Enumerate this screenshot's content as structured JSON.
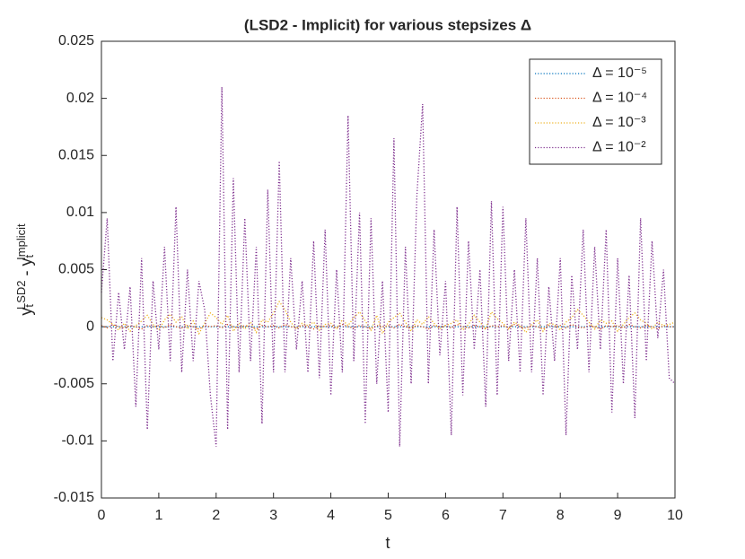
{
  "chart_data": {
    "type": "line",
    "title": "(LSD2 - Implicit) for various stepsizes Δ",
    "xlabel": "t",
    "ylabel": [
      {
        "text": "y"
      },
      {
        "text": "t",
        "role": "sub"
      },
      {
        "text": "LSD2",
        "role": "sup"
      },
      {
        "text": " - y"
      },
      {
        "text": "t",
        "role": "sub"
      },
      {
        "text": "Implicit",
        "role": "sup"
      }
    ],
    "x": [
      0,
      0.1,
      0.2,
      0.3,
      0.4,
      0.5,
      0.6,
      0.7,
      0.8,
      0.9,
      1,
      1.1,
      1.2,
      1.3,
      1.4,
      1.5,
      1.6,
      1.7,
      1.8,
      1.9,
      2,
      2.1,
      2.2,
      2.3,
      2.4,
      2.5,
      2.6,
      2.7,
      2.8,
      2.9,
      3,
      3.1,
      3.2,
      3.3,
      3.4,
      3.5,
      3.6,
      3.7,
      3.8,
      3.9,
      4,
      4.1,
      4.2,
      4.3,
      4.4,
      4.5,
      4.6,
      4.7,
      4.8,
      4.9,
      5,
      5.1,
      5.2,
      5.3,
      5.4,
      5.5,
      5.6,
      5.7,
      5.8,
      5.9,
      6,
      6.1,
      6.2,
      6.3,
      6.4,
      6.5,
      6.6,
      6.7,
      6.8,
      6.9,
      7,
      7.1,
      7.2,
      7.3,
      7.4,
      7.5,
      7.6,
      7.7,
      7.8,
      7.9,
      8,
      8.1,
      8.2,
      8.3,
      8.4,
      8.5,
      8.6,
      8.7,
      8.8,
      8.9,
      9,
      9.1,
      9.2,
      9.3,
      9.4,
      9.5,
      9.6,
      9.7,
      9.8,
      9.9,
      10
    ],
    "series": [
      {
        "name": "Δ = 10⁻⁵",
        "color": "#0072bd",
        "values": [
          0,
          0,
          0,
          0,
          0,
          0,
          0,
          0,
          0,
          0,
          0,
          0,
          0,
          0,
          0,
          0,
          0,
          0,
          0,
          0,
          0,
          0,
          0,
          0,
          0,
          0,
          0,
          0,
          0,
          0,
          0,
          0,
          0,
          0,
          0,
          0,
          0,
          0,
          0,
          0,
          0,
          0,
          0,
          0,
          0,
          0,
          0,
          0,
          0,
          0,
          0,
          0,
          0,
          0,
          0,
          0,
          0,
          0,
          0,
          0,
          0,
          0,
          0,
          0,
          0,
          0,
          0,
          0,
          0,
          0,
          0,
          0,
          0,
          0,
          0,
          0,
          0,
          0,
          0,
          0,
          0,
          0,
          0,
          0,
          0,
          0,
          0,
          0,
          0,
          0,
          0,
          0,
          0,
          0,
          0,
          0,
          0,
          0,
          0,
          0,
          0
        ]
      },
      {
        "name": "Δ = 10⁻⁴",
        "color": "#d95319",
        "values": [
          0.0001,
          -0.0001,
          0.0002,
          0,
          -0.0001,
          0.0001,
          0,
          -0.0002,
          0.0001,
          0,
          0.0001,
          -0.0001,
          0.0002,
          0,
          -0.0001,
          0.0001,
          0,
          -0.0002,
          0.0001,
          0,
          0.0001,
          -0.0001,
          0.0002,
          0,
          -0.0001,
          0.0001,
          0,
          -0.0002,
          0.0001,
          0,
          0.0001,
          -0.0001,
          0.0002,
          0,
          -0.0001,
          0.0001,
          0,
          -0.0002,
          0.0001,
          0,
          0.0001,
          -0.0001,
          0.0002,
          0,
          -0.0001,
          0.0001,
          0,
          -0.0002,
          0.0001,
          0,
          0.0001,
          -0.0001,
          0.0002,
          0,
          -0.0001,
          0.0001,
          0,
          -0.0002,
          0.0001,
          0,
          0.0001,
          -0.0001,
          0.0002,
          0,
          -0.0001,
          0.0001,
          0,
          -0.0002,
          0.0001,
          0,
          0.0001,
          -0.0001,
          0.0002,
          0,
          -0.0001,
          0.0001,
          0,
          -0.0002,
          0.0001,
          0,
          0.0001,
          -0.0001,
          0.0002,
          0,
          -0.0001,
          0.0001,
          0,
          -0.0002,
          0.0001,
          0,
          0.0001,
          -0.0001,
          0.0002,
          0,
          -0.0001,
          0.0001,
          0,
          -0.0002,
          0.0001,
          0,
          0
        ]
      },
      {
        "name": "Δ = 10⁻³",
        "color": "#edb120",
        "values": [
          0.0008,
          0.0006,
          0.0002,
          -0.0003,
          0.0003,
          -0.0004,
          0.0001,
          0.0005,
          0.001,
          0.0002,
          -0.0003,
          0.0006,
          0.0011,
          0.0004,
          0.0009,
          -0.0002,
          0.0005,
          -0.0006,
          0.0003,
          0.0012,
          0.0008,
          0.0002,
          0.001,
          -0.0004,
          0.0003,
          -0.0002,
          0.0004,
          -0.0005,
          0.0006,
          0.0004,
          0.0012,
          0.0022,
          0.0015,
          0.0004,
          -0.0002,
          0.0003,
          0.0001,
          0.0004,
          -0.0003,
          0.0002,
          0.0003,
          -0.0002,
          0.0006,
          0.0001,
          0.0008,
          0.0013,
          0.0005,
          -0.0003,
          0.001,
          -0.0006,
          0.0004,
          0.0008,
          0.0012,
          0.0004,
          -0.0004,
          0.0006,
          0.0002,
          0.0009,
          0.0003,
          -0.0002,
          0.0001,
          0.0003,
          0.0006,
          -0.0003,
          0.0002,
          0.001,
          0.0004,
          -0.0002,
          0.0013,
          0.0007,
          0.0003,
          -0.0002,
          0.0004,
          0.0001,
          -0.0005,
          0.0002,
          0.0006,
          -0.0004,
          0.0003,
          0.0002,
          -0.0003,
          0.0004,
          0.0008,
          0.0015,
          0.001,
          0.0004,
          -0.0002,
          0.0006,
          0.0003,
          0.0005,
          -0.0004,
          0.0002,
          0.0008,
          0.0012,
          0.0006,
          0.0003,
          -0.0002,
          0.0004,
          0.0001,
          0.0002,
          0.0004
        ]
      },
      {
        "name": "Δ = 10⁻²",
        "color": "#7e2f8e",
        "values": [
          0.003,
          0.0095,
          -0.003,
          0.003,
          -0.002,
          0.0035,
          -0.007,
          0.006,
          -0.009,
          0.004,
          -0.002,
          0.007,
          -0.003,
          0.0105,
          -0.004,
          0.005,
          -0.003,
          0.004,
          0.0015,
          -0.006,
          -0.0105,
          0.021,
          -0.009,
          0.013,
          -0.004,
          0.0095,
          -0.003,
          0.007,
          -0.0085,
          0.012,
          -0.004,
          0.0145,
          -0.004,
          0.006,
          -0.002,
          0.004,
          -0.004,
          0.0075,
          -0.0045,
          0.0085,
          -0.006,
          0.005,
          -0.004,
          0.0185,
          -0.003,
          0.01,
          -0.0085,
          0.0095,
          -0.005,
          0.004,
          -0.0075,
          0.0165,
          -0.0105,
          0.007,
          -0.005,
          0.0115,
          0.0195,
          -0.005,
          0.0085,
          -0.0025,
          0.004,
          -0.0095,
          0.0105,
          -0.006,
          0.0075,
          -0.002,
          0.005,
          -0.007,
          0.011,
          -0.006,
          0.0105,
          -0.003,
          0.005,
          -0.004,
          0.0095,
          -0.004,
          0.006,
          -0.006,
          0.0035,
          -0.003,
          0.006,
          -0.0095,
          0.0045,
          -0.002,
          0.0085,
          -0.004,
          0.007,
          -0.002,
          0.0085,
          -0.0075,
          0.006,
          -0.005,
          0.0045,
          -0.008,
          0.0095,
          -0.003,
          0.0075,
          -0.001,
          0.005,
          -0.0045,
          -0.005
        ]
      }
    ],
    "xlim": [
      0,
      10
    ],
    "xticks": [
      0,
      1,
      2,
      3,
      4,
      5,
      6,
      7,
      8,
      9,
      10
    ],
    "ylim": [
      -0.015,
      0.025
    ],
    "yticks": [
      -0.015,
      -0.01,
      -0.005,
      0,
      0.005,
      0.01,
      0.015,
      0.02,
      0.025
    ],
    "grid": false,
    "legend": "top-right",
    "line_style": "dotted"
  }
}
